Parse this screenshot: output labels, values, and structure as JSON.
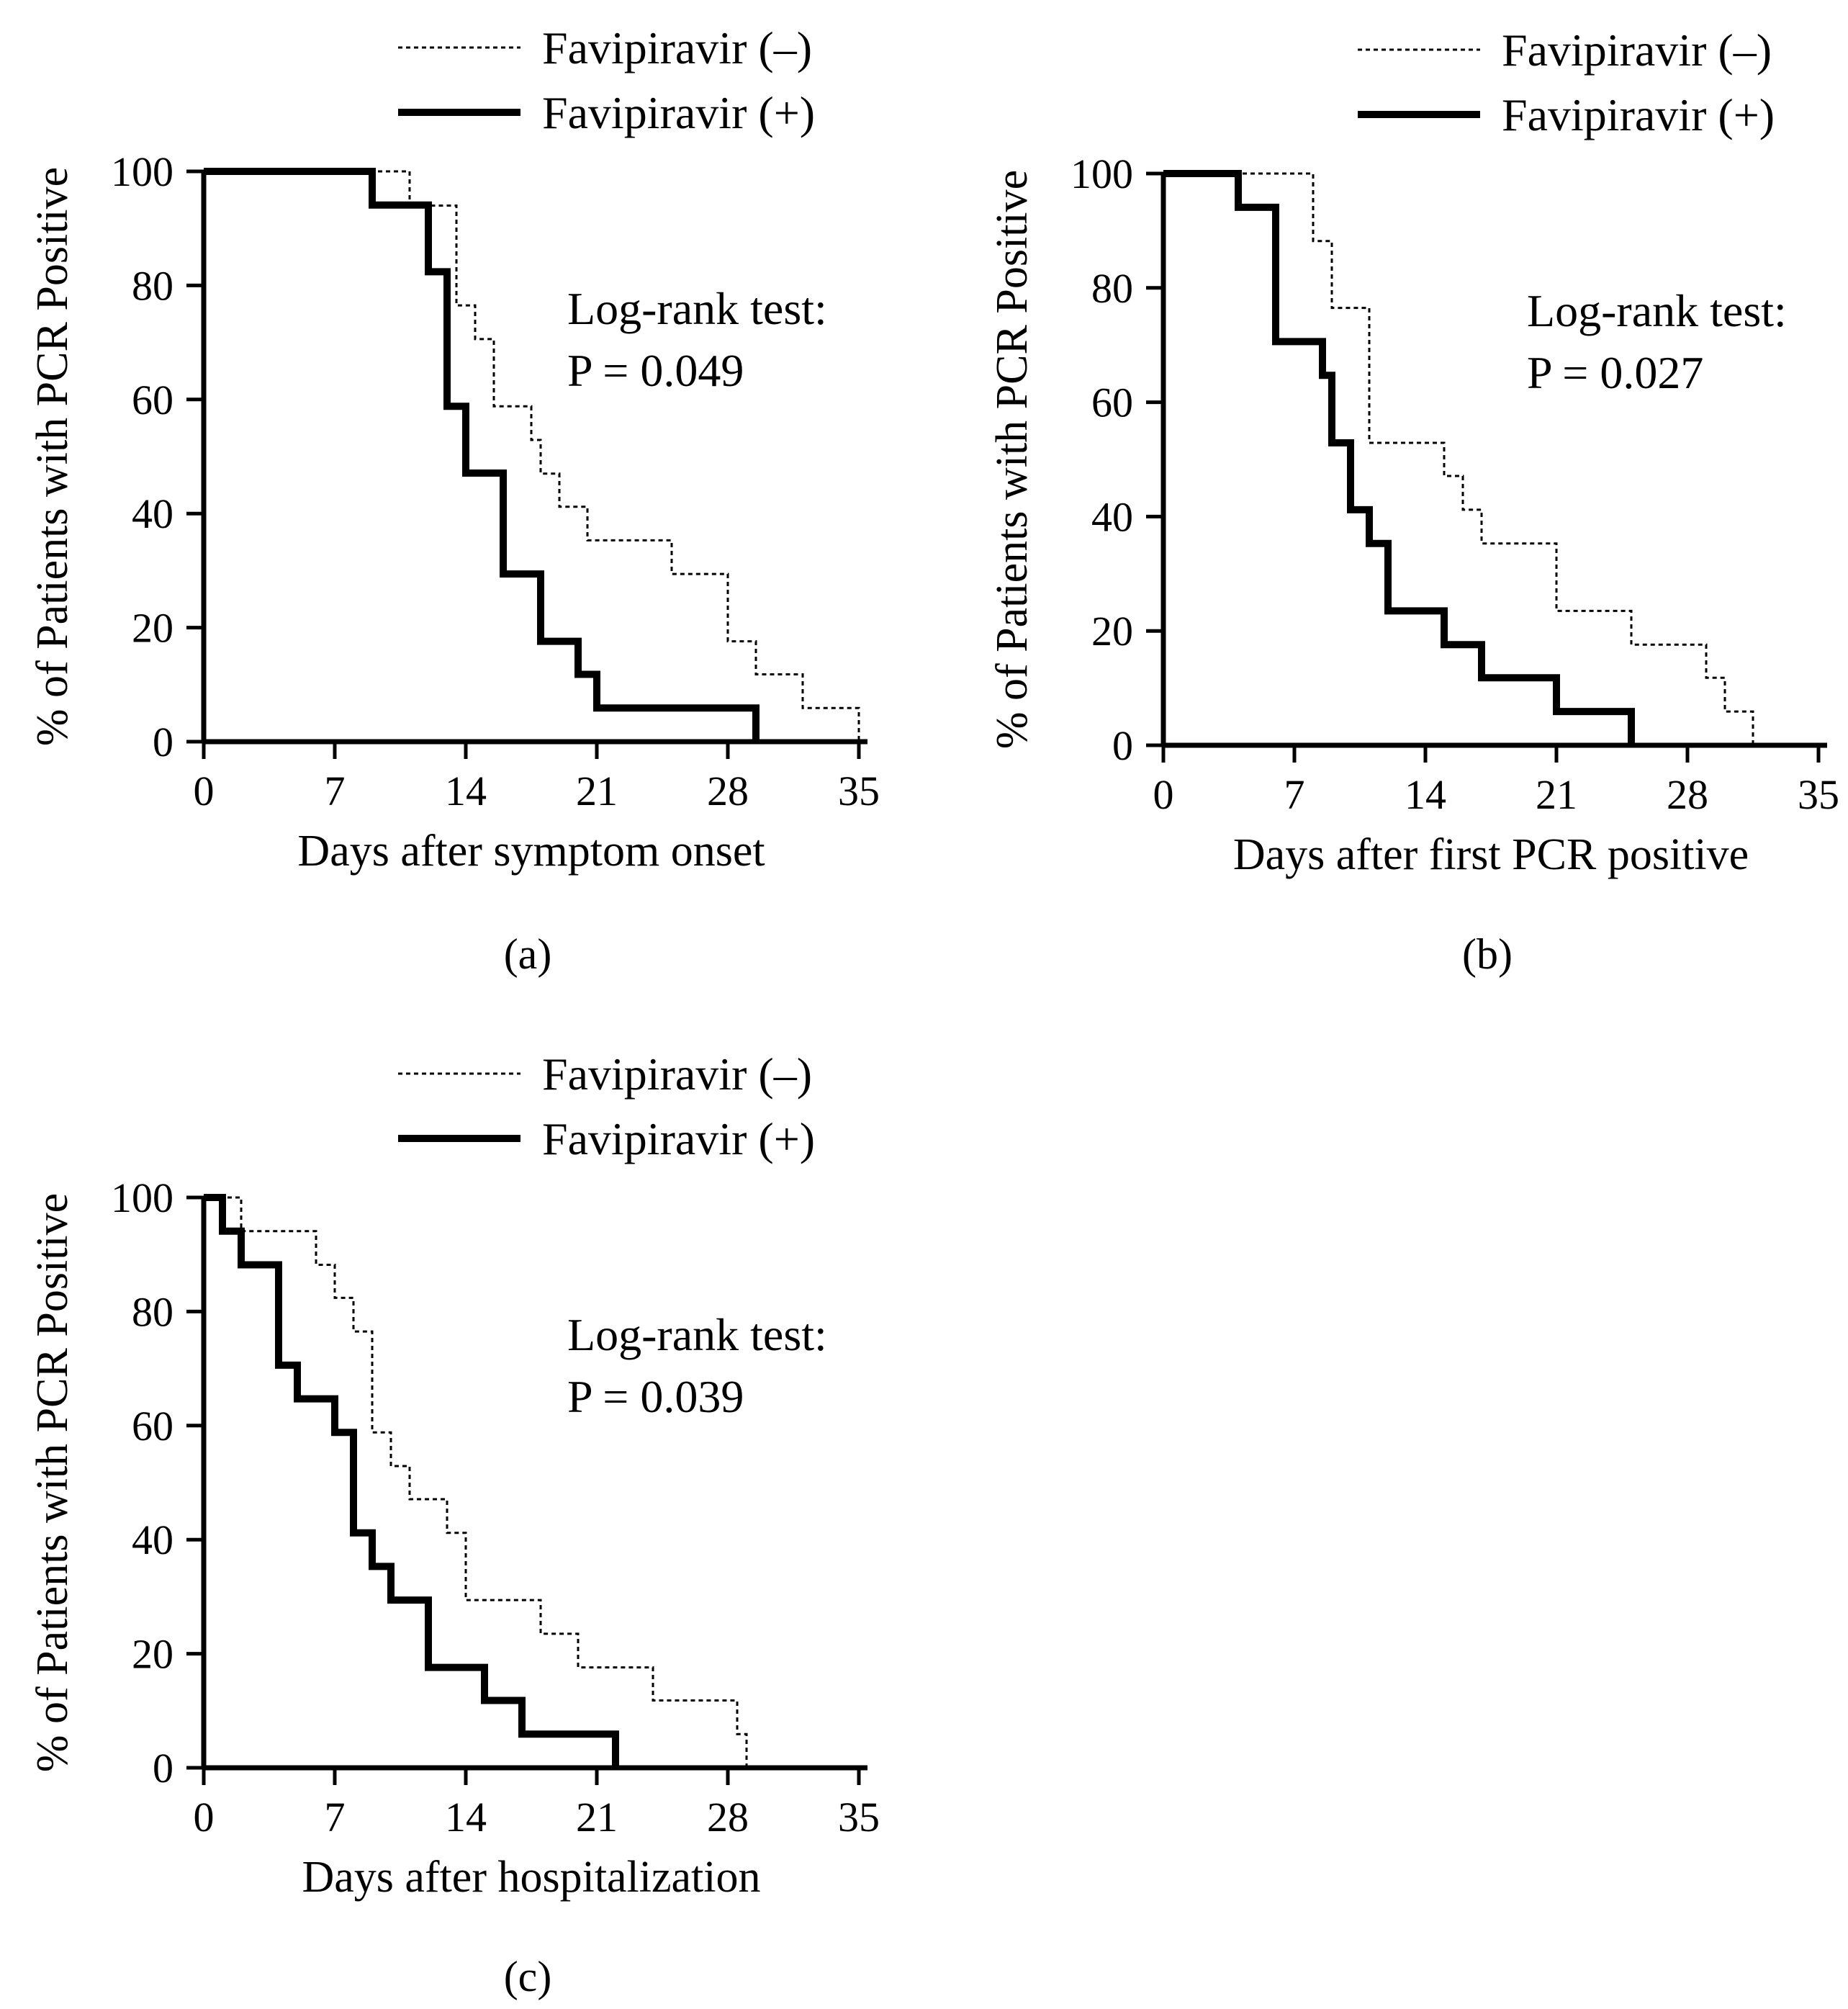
{
  "figure": {
    "legend_dashed_label": "Favipiravir (–)",
    "legend_solid_label": "Favipiravir (+)"
  },
  "colors": {
    "line": "#000000",
    "background": "#ffffff"
  },
  "chart_data": [
    {
      "type": "line",
      "step": true,
      "panel": "a",
      "caption": "(a)",
      "xlabel": "Days after symptom onset",
      "ylabel": "% of Patients with PCR Positive",
      "xlim": [
        0,
        35
      ],
      "ylim": [
        0,
        100
      ],
      "xticks": [
        "0",
        "7",
        "14",
        "21",
        "28",
        "35"
      ],
      "yticks": [
        "0",
        "20",
        "40",
        "60",
        "80",
        "100"
      ],
      "annotation": [
        "Log-rank test:",
        "P = 0.049"
      ],
      "legend": [
        "Favipiravir (–)",
        "Favipiravir (+)"
      ],
      "series": [
        {
          "name": "Favipiravir (–)",
          "style": "dashed",
          "x": [
            0,
            11,
            13.5,
            14.5,
            15.5,
            17.5,
            18,
            19,
            20.5,
            25,
            28,
            29.5,
            32,
            35
          ],
          "y": [
            100,
            94,
            76.5,
            70.6,
            58.8,
            52.9,
            47,
            41.2,
            35.3,
            29.4,
            17.6,
            11.8,
            5.9,
            0
          ]
        },
        {
          "name": "Favipiravir (+)",
          "style": "solid",
          "x": [
            0,
            9,
            12,
            13,
            14,
            16,
            18,
            20,
            21,
            29.5
          ],
          "y": [
            100,
            94.1,
            82.4,
            58.8,
            47.1,
            29.4,
            17.6,
            11.8,
            5.9,
            0
          ]
        }
      ]
    },
    {
      "type": "line",
      "step": true,
      "panel": "b",
      "caption": "(b)",
      "xlabel": "Days after first PCR positive",
      "ylabel": "% of Patients with PCR Positive",
      "xlim": [
        0,
        35
      ],
      "ylim": [
        0,
        100
      ],
      "xticks": [
        "0",
        "7",
        "14",
        "21",
        "28",
        "35"
      ],
      "yticks": [
        "0",
        "20",
        "40",
        "60",
        "80",
        "100"
      ],
      "annotation": [
        "Log-rank test:",
        "P = 0.027"
      ],
      "legend": [
        "Favipiravir (–)",
        "Favipiravir (+)"
      ],
      "series": [
        {
          "name": "Favipiravir (–)",
          "style": "dashed",
          "x": [
            0,
            8,
            9,
            11,
            15,
            16,
            17,
            21,
            25,
            29,
            30,
            31.5
          ],
          "y": [
            100,
            88.2,
            76.5,
            52.9,
            47.1,
            41.2,
            35.3,
            23.5,
            17.6,
            11.8,
            5.9,
            0
          ]
        },
        {
          "name": "Favipiravir (+)",
          "style": "solid",
          "x": [
            0,
            4,
            6,
            8.5,
            9,
            10,
            11,
            12,
            15,
            17,
            21,
            25
          ],
          "y": [
            100,
            94.1,
            70.6,
            64.7,
            52.9,
            41.2,
            35.3,
            23.5,
            17.6,
            11.8,
            5.9,
            0
          ]
        }
      ]
    },
    {
      "type": "line",
      "step": true,
      "panel": "c",
      "caption": "(c)",
      "xlabel": "Days after hospitalization",
      "ylabel": "% of Patients with PCR Positive",
      "xlim": [
        0,
        35
      ],
      "ylim": [
        0,
        100
      ],
      "xticks": [
        "0",
        "7",
        "14",
        "21",
        "28",
        "35"
      ],
      "yticks": [
        "0",
        "20",
        "40",
        "60",
        "80",
        "100"
      ],
      "annotation": [
        "Log-rank test:",
        "P = 0.039"
      ],
      "legend": [
        "Favipiravir (–)",
        "Favipiravir (+)"
      ],
      "series": [
        {
          "name": "Favipiravir (–)",
          "style": "dashed",
          "x": [
            0,
            2,
            6,
            7,
            8,
            9,
            10,
            11,
            13,
            14,
            18,
            20,
            24,
            28.5,
            29
          ],
          "y": [
            100,
            94.1,
            88.2,
            82.4,
            76.5,
            58.8,
            52.9,
            47.1,
            41.2,
            29.4,
            23.5,
            17.6,
            11.8,
            5.9,
            0
          ]
        },
        {
          "name": "Favipiravir (+)",
          "style": "solid",
          "x": [
            0,
            1,
            2,
            4,
            5,
            7,
            8,
            9,
            10,
            12,
            15,
            17,
            22
          ],
          "y": [
            100,
            94.1,
            88.2,
            70.6,
            64.7,
            58.8,
            41.2,
            35.3,
            29.4,
            17.6,
            11.8,
            5.9,
            0
          ]
        }
      ]
    }
  ]
}
